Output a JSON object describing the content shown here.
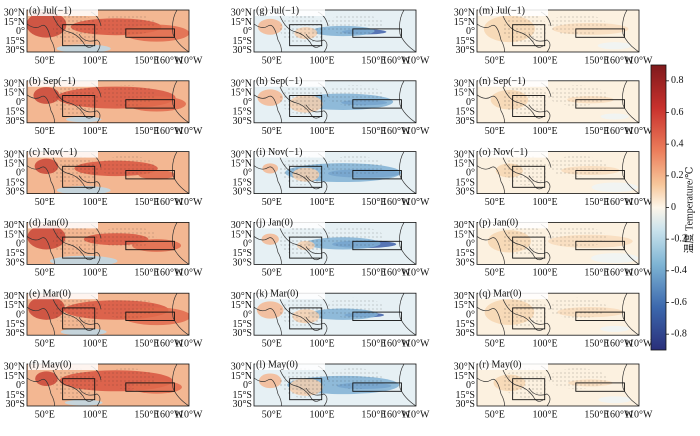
{
  "panels": [
    {
      "label": "(a) Jul(−1)"
    },
    {
      "label": "(b) Sep(−1)"
    },
    {
      "label": "(c) Nov(−1)"
    },
    {
      "label": "(d) Jan(0)"
    },
    {
      "label": "(e) Mar(0)"
    },
    {
      "label": "(f) May(0)"
    },
    {
      "label": "(g) Jul(−1)"
    },
    {
      "label": "(h) Sep(−1)"
    },
    {
      "label": "(i) Nov(−1)"
    },
    {
      "label": "(j) Jan(0)"
    },
    {
      "label": "(k) Mar(0)"
    },
    {
      "label": "(l) May(0)"
    },
    {
      "label": "(m) Jul(−1)"
    },
    {
      "label": "(n) Sep(−1)"
    },
    {
      "label": "(o) Nov(−1)"
    },
    {
      "label": "(p) Jan(0)"
    },
    {
      "label": "(q) Mar(0)"
    },
    {
      "label": "(r) May(0)"
    }
  ],
  "lat_labels": [
    "30°N",
    "15°N",
    "0°",
    "15°S",
    "30°S"
  ],
  "lon_labels": [
    "50°E",
    "100°E",
    "150°E",
    "160°W",
    "110°W"
  ],
  "colorbar": {
    "label": "温度 Temperature/℃",
    "range": [
      -0.9,
      0.9
    ],
    "ticks": [
      0.8,
      0.6,
      0.4,
      0.2,
      0,
      -0.2,
      -0.4,
      -0.6,
      -0.8
    ]
  }
}
